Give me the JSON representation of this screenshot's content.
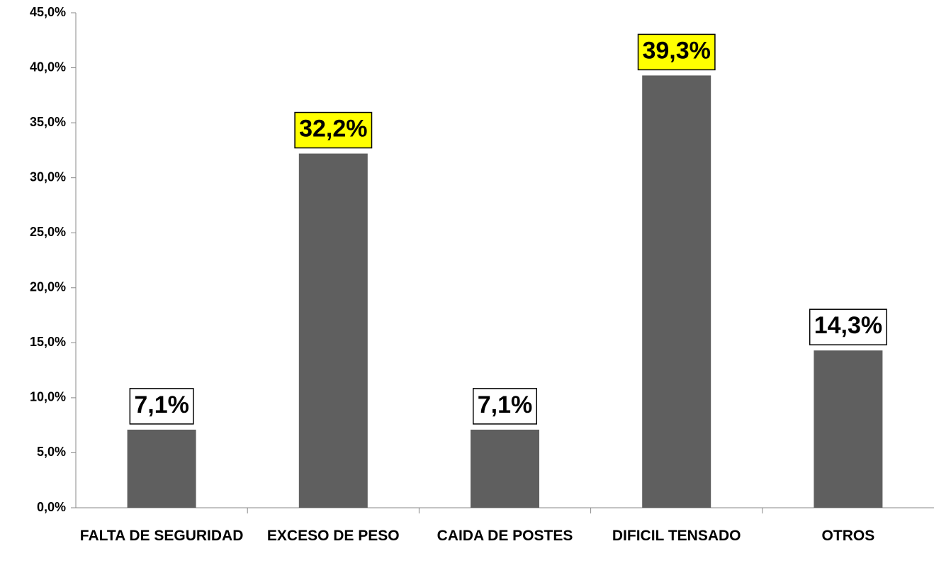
{
  "chart_data": {
    "type": "bar",
    "categories": [
      "FALTA DE SEGURIDAD",
      "EXCESO DE PESO",
      "CAIDA DE POSTES",
      "DIFICIL TENSADO",
      "OTROS"
    ],
    "values": [
      7.1,
      32.2,
      7.1,
      39.3,
      14.3
    ],
    "value_labels": [
      "7,1%",
      "32,2%",
      "7,1%",
      "39,3%",
      "14,3%"
    ],
    "color": "#5f5f5f",
    "label_colors": [
      "#ffffff",
      "#ffff00",
      "#ffffff",
      "#ffff00",
      "#ffffff"
    ],
    "ylim": [
      0,
      45
    ],
    "yticks": [
      {
        "value": 0,
        "label": "0,0%"
      },
      {
        "value": 5,
        "label": "5,0%"
      },
      {
        "value": 10,
        "label": "10,0%"
      },
      {
        "value": 15,
        "label": "15,0%"
      },
      {
        "value": 20,
        "label": "20,0%"
      },
      {
        "value": 25,
        "label": "25,0%"
      },
      {
        "value": 30,
        "label": "30,0%"
      },
      {
        "value": 35,
        "label": "35,0%"
      },
      {
        "value": 40,
        "label": "40,0%"
      },
      {
        "value": 45,
        "label": "45,0%"
      }
    ],
    "grid": false
  }
}
